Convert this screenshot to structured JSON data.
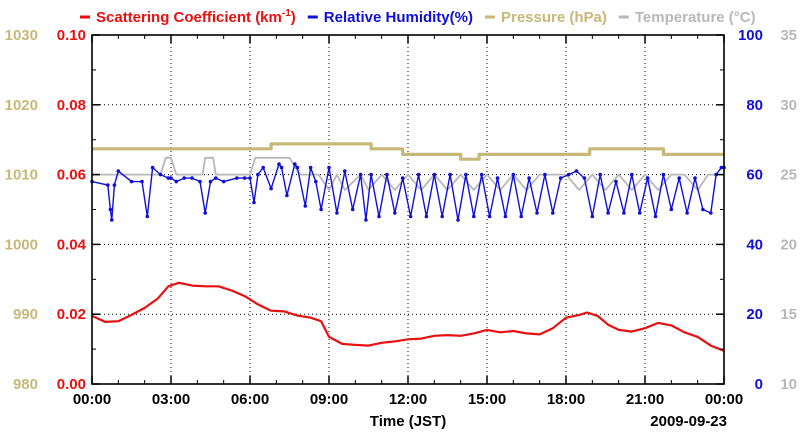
{
  "chart_data": {
    "type": "line",
    "title": "",
    "legend": [
      {
        "name": "Scattering Coefficient (km",
        "superscript": "-1",
        "suffix": ")",
        "color": "#e81010"
      },
      {
        "name": "Relative Humidity(%)",
        "color": "#1010d8"
      },
      {
        "name": "Pressure (hPa)",
        "color": "#c8b878"
      },
      {
        "name": "Temperature (°C)",
        "color": "#b8b8b8"
      }
    ],
    "xlabel": "Time (JST)",
    "date_label": "2009-09-23",
    "x_range": [
      0,
      24
    ],
    "x_ticks": [
      0,
      3,
      6,
      9,
      12,
      15,
      18,
      21,
      24
    ],
    "x_tick_labels": [
      "00:00",
      "03:00",
      "06:00",
      "09:00",
      "12:00",
      "15:00",
      "18:00",
      "21:00",
      "00:00"
    ],
    "axes": {
      "pressure": {
        "range": [
          980,
          1030
        ],
        "ticks": [
          980,
          990,
          1000,
          1010,
          1020,
          1030
        ],
        "tick_labels": [
          "980",
          "990",
          "1000",
          "1010",
          "1020",
          "1030"
        ],
        "color": "#c8b878",
        "side": "left-outer"
      },
      "scattering": {
        "range": [
          0,
          0.1
        ],
        "ticks": [
          0,
          0.02,
          0.04,
          0.06,
          0.08,
          0.1
        ],
        "tick_labels": [
          "0.00",
          "0.02",
          "0.04",
          "0.06",
          "0.08",
          "0.10"
        ],
        "color": "#e81010",
        "side": "left-inner"
      },
      "humidity": {
        "range": [
          0,
          100
        ],
        "ticks": [
          0,
          20,
          40,
          60,
          80,
          100
        ],
        "tick_labels": [
          "0",
          "20",
          "40",
          "60",
          "80",
          "100"
        ],
        "color": "#1010d8",
        "side": "right-inner"
      },
      "temperature": {
        "range": [
          10,
          35
        ],
        "ticks": [
          10,
          15,
          20,
          25,
          30,
          35
        ],
        "tick_labels": [
          "10",
          "15",
          "20",
          "25",
          "30",
          "35"
        ],
        "color": "#b8b8b8",
        "side": "right-outer"
      }
    },
    "grid": true,
    "series": [
      {
        "name": "Scattering Coefficient",
        "axis": "scattering",
        "x": [
          0,
          0.5,
          1.0,
          1.5,
          2.0,
          2.5,
          2.9,
          3.3,
          3.8,
          4.3,
          4.8,
          5.3,
          5.8,
          6.3,
          6.8,
          7.3,
          7.8,
          8.3,
          8.7,
          9.0,
          9.5,
          10.0,
          10.5,
          11.0,
          11.5,
          12.0,
          12.5,
          13.0,
          13.5,
          14.0,
          14.5,
          15.0,
          15.5,
          16.0,
          16.5,
          17.0,
          17.5,
          18.0,
          18.5,
          18.8,
          19.2,
          19.6,
          20.0,
          20.5,
          21.0,
          21.5,
          22.0,
          22.5,
          23.0,
          23.5,
          24.0
        ],
        "values": [
          0.0195,
          0.0178,
          0.018,
          0.0198,
          0.0218,
          0.0245,
          0.028,
          0.029,
          0.0282,
          0.028,
          0.028,
          0.0268,
          0.0252,
          0.0228,
          0.021,
          0.0208,
          0.0196,
          0.019,
          0.018,
          0.0135,
          0.0115,
          0.0112,
          0.011,
          0.0118,
          0.0122,
          0.0128,
          0.013,
          0.0138,
          0.014,
          0.0138,
          0.0145,
          0.0155,
          0.0148,
          0.0152,
          0.0145,
          0.0142,
          0.016,
          0.019,
          0.0198,
          0.0205,
          0.0195,
          0.017,
          0.0155,
          0.015,
          0.016,
          0.0175,
          0.0168,
          0.0148,
          0.0135,
          0.011,
          0.0095
        ]
      },
      {
        "name": "Relative Humidity",
        "axis": "humidity",
        "x": [
          0,
          0.6,
          0.7,
          0.75,
          0.85,
          1.0,
          1.5,
          1.9,
          2.1,
          2.3,
          2.6,
          2.9,
          3.0,
          3.2,
          3.5,
          3.8,
          4.1,
          4.3,
          4.5,
          4.7,
          5.0,
          5.5,
          5.8,
          6.0,
          6.15,
          6.3,
          6.5,
          6.8,
          7.1,
          7.2,
          7.4,
          7.7,
          7.8,
          8.1,
          8.3,
          8.5,
          8.7,
          9.0,
          9.3,
          9.6,
          9.9,
          10.2,
          10.4,
          10.6,
          10.9,
          11.2,
          11.5,
          11.8,
          12.1,
          12.4,
          12.7,
          13.0,
          13.3,
          13.6,
          13.9,
          14.2,
          14.5,
          14.8,
          15.1,
          15.4,
          15.7,
          16.0,
          16.3,
          16.6,
          16.9,
          17.2,
          17.5,
          17.8,
          18.1,
          18.4,
          18.7,
          19.0,
          19.3,
          19.6,
          19.9,
          20.2,
          20.5,
          20.8,
          21.1,
          21.4,
          21.7,
          22.0,
          22.3,
          22.6,
          22.9,
          23.2,
          23.5,
          23.7,
          23.9,
          24.0
        ],
        "values": [
          58,
          57,
          50,
          47,
          57,
          61,
          58,
          58,
          48,
          62,
          60,
          59,
          59,
          58,
          59,
          59,
          58,
          49,
          58,
          59,
          58,
          59,
          59,
          59,
          52,
          60,
          62,
          56,
          63,
          62,
          54,
          63,
          62,
          51,
          62,
          58,
          50,
          62,
          49,
          61,
          50,
          60,
          47,
          60,
          48,
          60,
          49,
          59,
          48,
          60,
          48,
          60,
          48,
          60,
          47,
          60,
          48,
          60,
          48,
          59,
          48,
          60,
          48,
          59,
          49,
          60,
          49,
          59,
          60,
          61,
          59,
          48,
          60,
          49,
          58,
          49,
          60,
          49,
          59,
          48,
          60,
          50,
          59,
          49,
          59,
          50,
          49,
          60,
          62,
          62
        ]
      },
      {
        "name": "Pressure",
        "axis": "pressure",
        "x": [
          0,
          6.8,
          6.8,
          10.6,
          10.6,
          11.8,
          11.8,
          14.0,
          14.0,
          14.7,
          14.7,
          18.9,
          18.9,
          21.7,
          21.7,
          24.0
        ],
        "values": [
          1013.7,
          1013.7,
          1014.4,
          1014.4,
          1013.7,
          1013.7,
          1012.9,
          1012.9,
          1012.2,
          1012.2,
          1012.9,
          1012.9,
          1013.7,
          1013.7,
          1012.9,
          1012.9
        ]
      },
      {
        "name": "Temperature",
        "axis": "temperature",
        "x": [
          0,
          2.6,
          2.8,
          3.0,
          3.2,
          4.2,
          4.3,
          4.6,
          4.7,
          6.0,
          6.2,
          7.5,
          7.9,
          8.6,
          9.0,
          9.3,
          9.6,
          10.2,
          10.5,
          11.0,
          11.5,
          12.0,
          12.5,
          13.0,
          13.5,
          14.0,
          14.5,
          15.0,
          15.5,
          16.0,
          16.5,
          17.0,
          17.5,
          18.0,
          18.5,
          19.0,
          19.5,
          20.0,
          20.5,
          21.0,
          21.5,
          22.0,
          22.5,
          23.0,
          23.4,
          24.0
        ],
        "values": [
          25,
          25,
          26.2,
          26.2,
          25,
          25,
          26.2,
          26.2,
          25,
          25,
          26.2,
          26.2,
          25,
          25,
          23.9,
          25,
          23.9,
          25,
          23.9,
          25,
          23.9,
          25,
          23.9,
          25,
          23.9,
          25,
          23.9,
          25,
          23.9,
          25,
          23.9,
          25,
          25,
          25,
          23.9,
          25,
          23.9,
          25,
          23.9,
          25,
          23.9,
          25,
          25,
          23.9,
          25,
          25
        ]
      }
    ]
  }
}
